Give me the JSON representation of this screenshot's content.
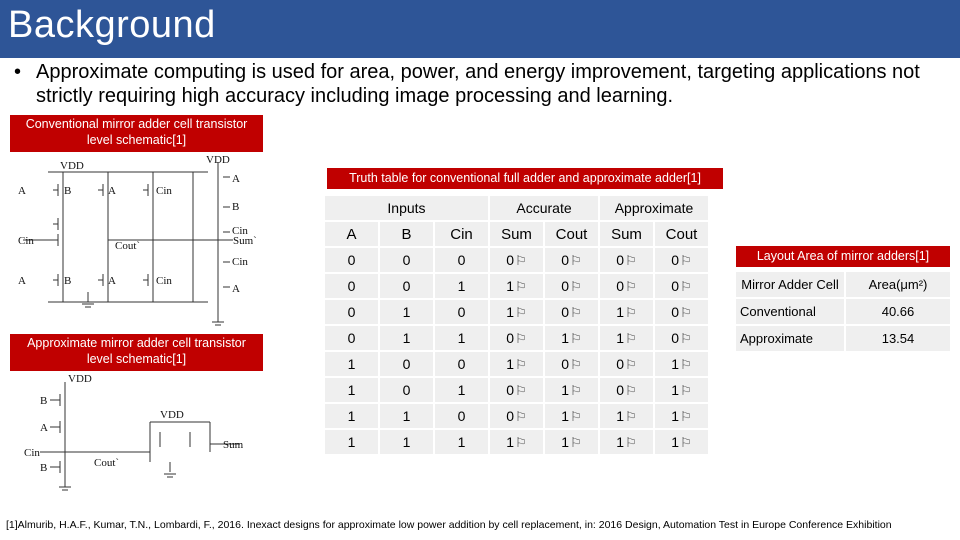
{
  "slide": {
    "title": "Background",
    "bullet": "Approximate computing is used for area, power, and energy improvement, targeting applications not strictly requiring high accuracy including image processing and learning.",
    "footnote": "[1]Almurib, H.A.F., Kumar, T.N., Lombardi, F., 2016. Inexact designs for approximate low power addition by cell replacement, in: 2016 Design, Automation Test in Europe Conference Exhibition"
  },
  "labels": {
    "conventional": "Conventional mirror adder cell transistor level schematic[1]",
    "approximate": "Approximate mirror adder cell transistor level schematic[1]",
    "truth_table": "Truth table for conventional full adder and approximate adder[1]",
    "layout_area": "Layout Area of mirror adders[1]"
  },
  "schematic_conventional": {
    "vdd1": "VDD",
    "vdd2": "VDD",
    "a": "A",
    "b": "B",
    "cin": "Cin",
    "cout": "Cout`",
    "sum": "Sum`"
  },
  "schematic_approximate": {
    "vdd1": "VDD",
    "vdd2": "VDD",
    "a": "A",
    "b": "B",
    "cin": "Cin",
    "cout": "Cout`",
    "sum": "Sum"
  },
  "truth_table": {
    "groups": [
      "Inputs",
      "Accurate",
      "Approximate"
    ],
    "columns": [
      "A",
      "B",
      "Cin",
      "Sum",
      "Cout",
      "Sum",
      "Cout"
    ],
    "rows": [
      [
        "0",
        "0",
        "0",
        "0",
        "0",
        "0",
        "0"
      ],
      [
        "0",
        "0",
        "1",
        "1",
        "0",
        "0",
        "0"
      ],
      [
        "0",
        "1",
        "0",
        "1",
        "0",
        "1",
        "0"
      ],
      [
        "0",
        "1",
        "1",
        "0",
        "1",
        "1",
        "0"
      ],
      [
        "1",
        "0",
        "0",
        "1",
        "0",
        "0",
        "1"
      ],
      [
        "1",
        "0",
        "1",
        "0",
        "1",
        "0",
        "1"
      ],
      [
        "1",
        "1",
        "0",
        "0",
        "1",
        "1",
        "1"
      ],
      [
        "1",
        "1",
        "1",
        "1",
        "1",
        "1",
        "1"
      ]
    ],
    "marker_glyph": "⚐"
  },
  "area_table": {
    "header": [
      "Mirror Adder Cell",
      "Area(μm²)"
    ],
    "rows": [
      [
        "Conventional",
        "40.66"
      ],
      [
        "Approximate",
        "13.54"
      ]
    ]
  },
  "colors": {
    "title_bar": "#2e5597",
    "label_red": "#c00000",
    "cell_gray": "#efefef"
  }
}
